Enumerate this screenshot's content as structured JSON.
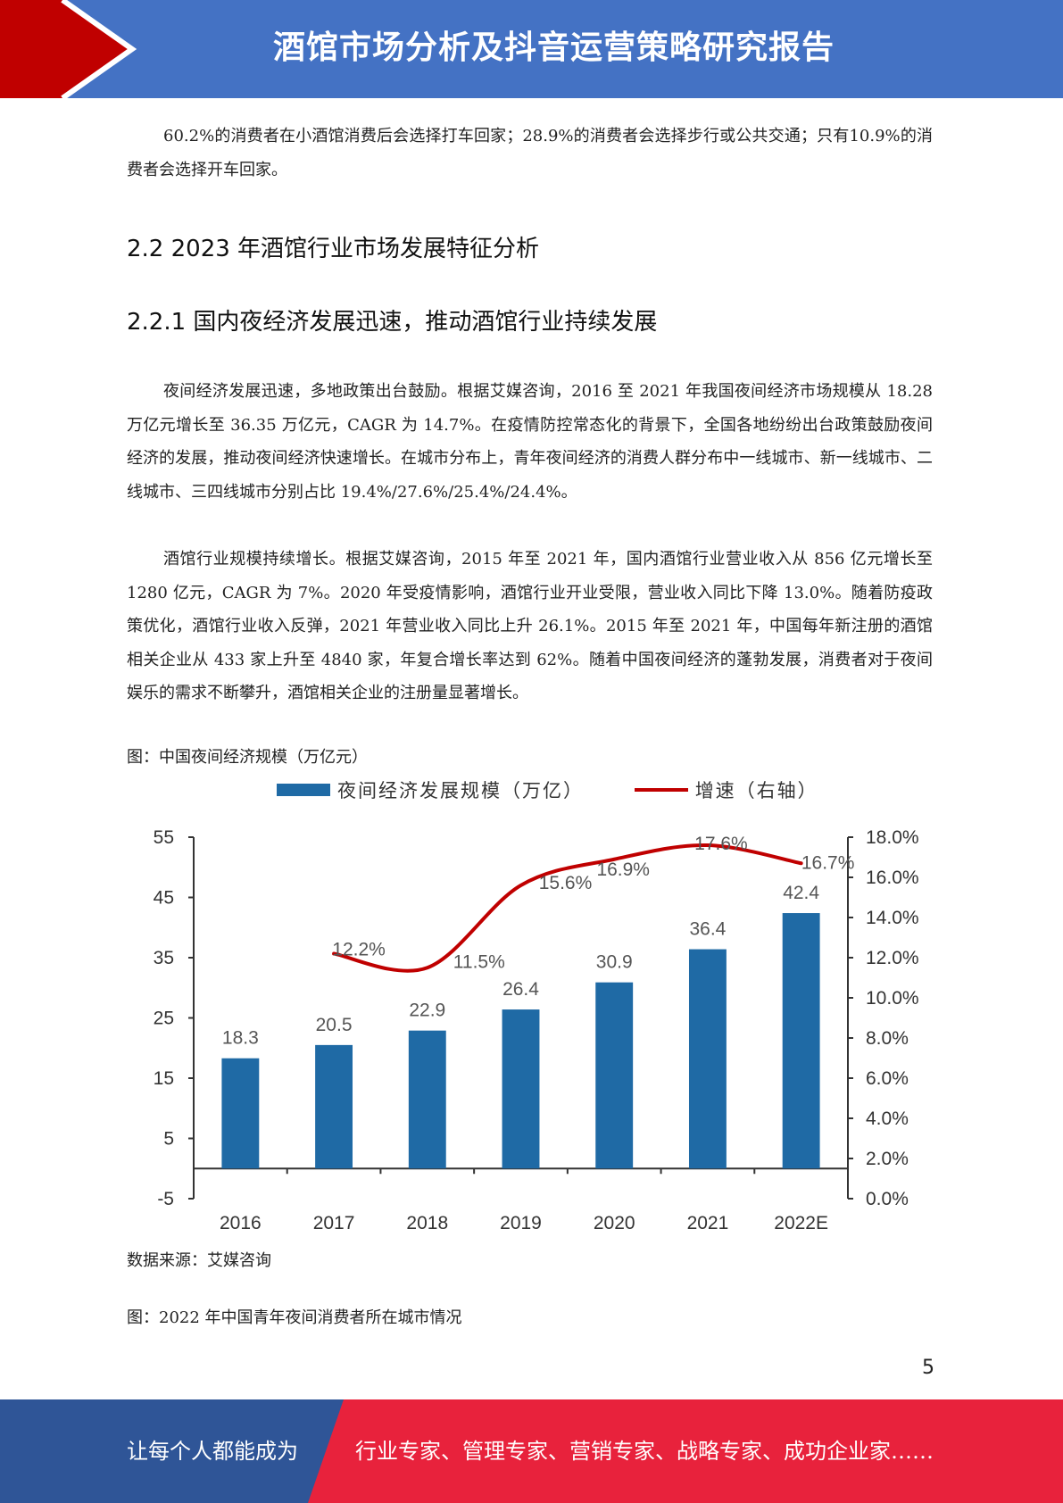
{
  "header": {
    "title": "酒馆市场分析及抖音运营策略研究报告"
  },
  "paragraphs": {
    "p1": "60.2%的消费者在小酒馆消费后会选择打车回家；28.9%的消费者会选择步行或公共交通；只有10.9%的消费者会选择开车回家。",
    "p2": "夜间经济发展迅速，多地政策出台鼓励。根据艾媒咨询，2016 至 2021 年我国夜间经济市场规模从 18.28 万亿元增长至 36.35 万亿元，CAGR 为 14.7%。在疫情防控常态化的背景下，全国各地纷纷出台政策鼓励夜间经济的发展，推动夜间经济快速增长。在城市分布上，青年夜间经济的消费人群分布中一线城市、新一线城市、二线城市、三四线城市分别占比 19.4%/27.6%/25.4%/24.4%。",
    "p3": "酒馆行业规模持续增长。根据艾媒咨询，2015 年至 2021 年，国内酒馆行业营业收入从 856 亿元增长至 1280 亿元，CAGR 为 7%。2020 年受疫情影响，酒馆行业开业受限，营业收入同比下降 13.0%。随着防疫政策优化，酒馆行业收入反弹，2021 年营业收入同比上升 26.1%。2015 年至 2021 年，中国每年新注册的酒馆相关企业从 433 家上升至 4840 家，年复合增长率达到 62%。随着中国夜间经济的蓬勃发展，消费者对于夜间娱乐的需求不断攀升，酒馆相关企业的注册量显著增长。"
  },
  "headings": {
    "h1": "2.2 2023 年酒馆行业市场发展特征分析",
    "h2": "2.2.1 国内夜经济发展迅速，推动酒馆行业持续发展"
  },
  "figure1": {
    "caption": "图：中国夜间经济规模（万亿元）",
    "source": "数据来源：艾媒咨询"
  },
  "figure2": {
    "caption": "图：2022 年中国青年夜间消费者所在城市情况"
  },
  "chart_data": {
    "type": "bar",
    "categories": [
      "2016",
      "2017",
      "2018",
      "2019",
      "2020",
      "2021",
      "2022E"
    ],
    "series": [
      {
        "name": "夜间经济发展规模（万亿）",
        "type": "bar",
        "axis": "left",
        "color": "#1f6aa5",
        "values": [
          18.3,
          20.5,
          22.9,
          26.4,
          30.9,
          36.4,
          42.4
        ],
        "labels": [
          "18.3",
          "20.5",
          "22.9",
          "26.4",
          "30.9",
          "36.4",
          "42.4"
        ]
      },
      {
        "name": "增速（右轴）",
        "type": "line",
        "axis": "right",
        "color": "#c00000",
        "values": [
          null,
          12.2,
          11.5,
          15.6,
          16.9,
          17.6,
          16.7
        ],
        "labels": [
          null,
          "12.2%",
          "11.5%",
          "15.6%",
          "16.9%",
          "17.6%",
          "16.7%"
        ]
      }
    ],
    "ylim_left": [
      -5,
      55
    ],
    "yticks_left": [
      "55",
      "45",
      "35",
      "25",
      "15",
      "5",
      "-5"
    ],
    "ylim_right": [
      0,
      18
    ],
    "yticks_right": [
      "18.0%",
      "16.0%",
      "14.0%",
      "12.0%",
      "10.0%",
      "8.0%",
      "6.0%",
      "4.0%",
      "2.0%",
      "0.0%"
    ],
    "legend": "top",
    "grid": false
  },
  "page_number": "5",
  "footer": {
    "left": "让每个人都能成为",
    "right": "行业专家、管理专家、营销专家、战略专家、成功企业家……"
  },
  "colors": {
    "header_blue": "#4472c4",
    "header_red": "#c00000",
    "footer_blue": "#2f5597",
    "footer_red": "#e8223c",
    "bar": "#1f6aa5",
    "line": "#c00000"
  }
}
